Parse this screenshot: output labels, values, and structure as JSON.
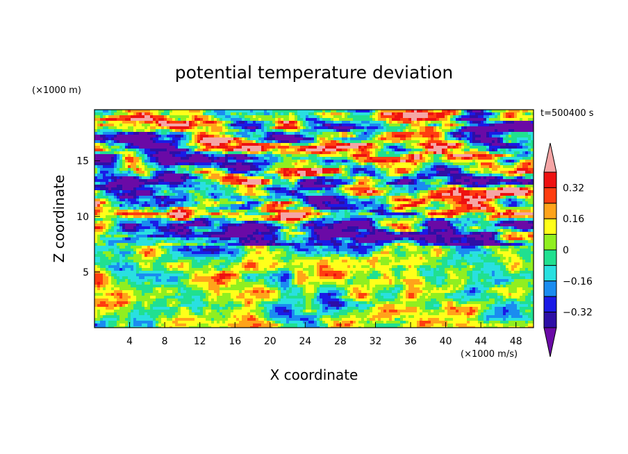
{
  "chart_data": {
    "type": "heatmap",
    "title": "potential temperature deviation",
    "xlabel": "X coordinate",
    "ylabel": "Z coordinate",
    "x_unit": "(×1000 m/s)",
    "y_unit": "(×1000 m)",
    "time_label": "t=500400 s",
    "xlim": [
      0,
      50
    ],
    "ylim": [
      0,
      19.6
    ],
    "x_ticks": [
      "4",
      "8",
      "12",
      "16",
      "20",
      "24",
      "28",
      "32",
      "36",
      "40",
      "44",
      "48"
    ],
    "y_ticks": [
      "5",
      "10",
      "15"
    ],
    "colorbar": {
      "tick_labels": [
        "0.32",
        "0.16",
        "0",
        "−0.16",
        "−0.32"
      ],
      "tick_values": [
        0.32,
        0.16,
        0,
        -0.16,
        -0.32
      ],
      "levels": [
        -0.4,
        -0.32,
        -0.24,
        -0.16,
        -0.08,
        0,
        0.08,
        0.16,
        0.24,
        0.32,
        0.4
      ],
      "colors": [
        "#6a0aa6",
        "#2d0fa6",
        "#1a1ae6",
        "#1a8cf0",
        "#29e0e0",
        "#20e090",
        "#90ef20",
        "#ffff1a",
        "#ffa31a",
        "#ff3d10",
        "#ee1111",
        "#f5a5a5"
      ]
    },
    "grid": false
  }
}
